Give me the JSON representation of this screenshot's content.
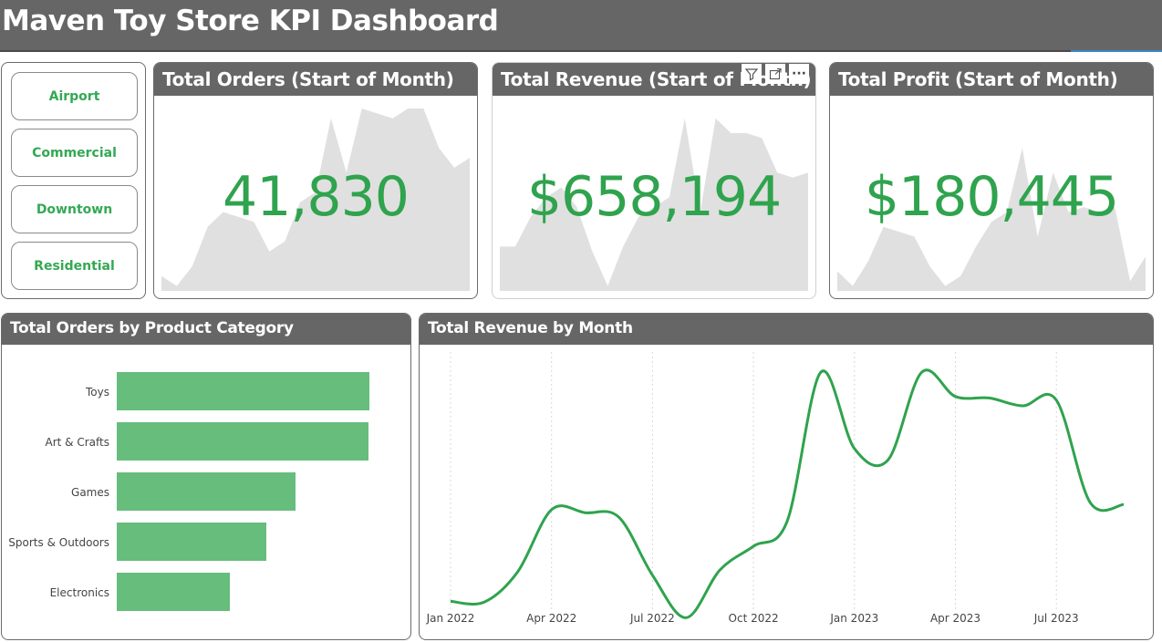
{
  "header": {
    "title": "Maven Toy Store KPI Dashboard"
  },
  "slicer": {
    "items": [
      "Airport",
      "Commercial",
      "Downtown",
      "Residential"
    ]
  },
  "kpis": {
    "orders": {
      "title": "Total Orders (Start of Month)",
      "value": "41,830"
    },
    "revenue": {
      "title": "Total Revenue (Start of Month)",
      "value": "$658,194"
    },
    "profit": {
      "title": "Total Profit (Start of Month)",
      "value": "$180,445"
    }
  },
  "toolbar": {
    "filter_icon": "filter-icon",
    "focus_icon": "focus-mode-icon",
    "more_label": "···"
  },
  "colors": {
    "accent": "#2fa34d",
    "bar": "#66bd7c",
    "header": "#666666",
    "spark": "#e0e0e0"
  },
  "chart_data": [
    {
      "type": "area",
      "title": "Total Orders (Start of Month)",
      "values": [
        3,
        1,
        5,
        13,
        16,
        15,
        14,
        8,
        10,
        18,
        20,
        35,
        24,
        37,
        36,
        35,
        37,
        37,
        29,
        25,
        27
      ]
    },
    {
      "type": "area",
      "title": "Total Revenue (Start of Month)",
      "values": [
        9,
        9,
        15,
        19,
        21,
        17,
        8,
        1,
        9,
        15,
        17,
        19,
        35,
        16,
        35,
        32,
        32,
        31,
        24,
        23,
        24
      ]
    },
    {
      "type": "area",
      "title": "Total Profit (Start of Month)",
      "values": [
        4,
        1,
        6,
        13,
        12,
        11,
        5,
        1,
        3,
        9,
        14,
        16,
        29,
        11,
        24,
        16,
        17,
        16,
        17,
        2,
        7
      ]
    },
    {
      "type": "bar",
      "title": "Total Orders by Product Category",
      "categories": [
        "Toys",
        "Art & Crafts",
        "Games",
        "Sports & Outdoors",
        "Electronics"
      ],
      "values": [
        13000,
        12950,
        9200,
        7700,
        5800
      ]
    },
    {
      "type": "line",
      "title": "Total Revenue by Month",
      "x_labels": [
        "Jan 2022",
        "Apr 2022",
        "Jul 2022",
        "Oct 2022",
        "Jan 2023",
        "Apr 2023",
        "Jul 2023"
      ],
      "values": [
        690,
        688,
        770,
        936,
        928,
        916,
        760,
        646,
        774,
        838,
        905,
        1305,
        1100,
        1070,
        1305,
        1240,
        1236,
        1215,
        1230,
        956,
        950
      ]
    }
  ],
  "bar_chart": {
    "title": "Total Orders by Product Category"
  },
  "line_chart": {
    "title": "Total Revenue by Month"
  }
}
